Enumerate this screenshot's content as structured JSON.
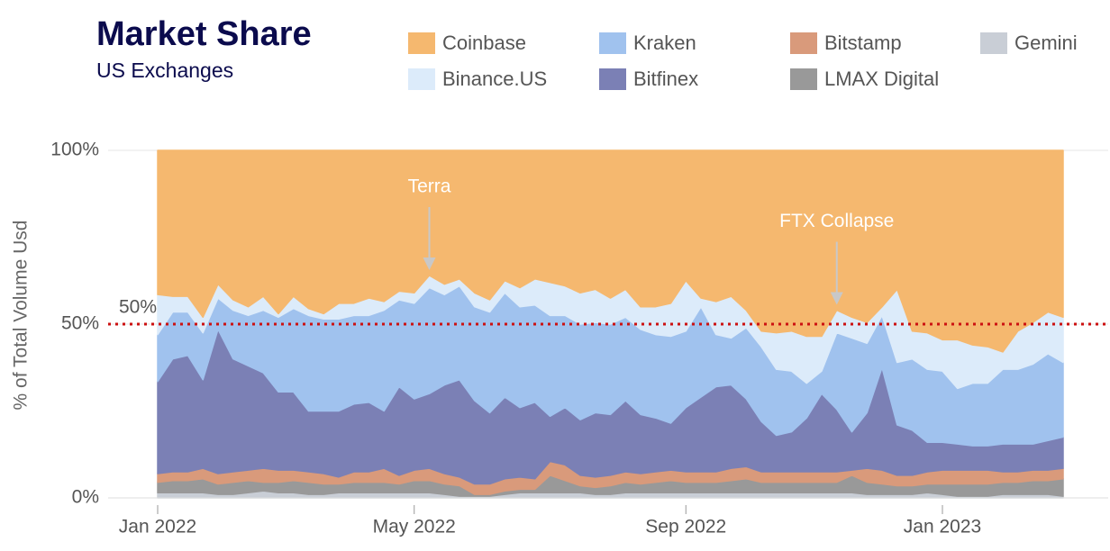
{
  "chart_data": {
    "type": "stacked_area",
    "title": "Market Share",
    "subtitle": "US Exchanges",
    "y_label": "% of Total Volume Usd",
    "categories": [
      "Jan 2022",
      null,
      null,
      null,
      null,
      null,
      null,
      null,
      null,
      null,
      null,
      null,
      null,
      null,
      null,
      null,
      null,
      "May 2022",
      null,
      null,
      null,
      null,
      null,
      null,
      null,
      null,
      null,
      null,
      null,
      null,
      null,
      null,
      null,
      null,
      null,
      "Sep 2022",
      null,
      null,
      null,
      null,
      null,
      null,
      null,
      null,
      null,
      null,
      null,
      null,
      null,
      null,
      null,
      null,
      "Jan 2023",
      null,
      null,
      null,
      null,
      null,
      null,
      null,
      null
    ],
    "ylim": [
      0,
      100
    ],
    "yticks": [
      {
        "value": 0,
        "label": "0%"
      },
      {
        "value": 50,
        "label": "50%"
      },
      {
        "value": 100,
        "label": "100%"
      }
    ],
    "grid": true,
    "reference_line": {
      "value": 50,
      "label": "50%",
      "color": "#cc1111"
    },
    "annotations": [
      {
        "text": "Terra",
        "x": 18
      },
      {
        "text": "FTX Collapse",
        "x": 45
      }
    ],
    "series": [
      {
        "name": "Coinbase",
        "color": "#f5b86f",
        "values": [
          41.5,
          42,
          42,
          48,
          38.5,
          43,
          45,
          42,
          47,
          42,
          45.5,
          47,
          44,
          44,
          42.5,
          43.5,
          40.5,
          41,
          36,
          38.5,
          37,
          41,
          43,
          37.5,
          39.5,
          37,
          38,
          39,
          41,
          40,
          42.5,
          40,
          45,
          45,
          44,
          37.5,
          42.5,
          43.5,
          42,
          46,
          52,
          52.5,
          52,
          53.5,
          53.5,
          46,
          48,
          49.5,
          45,
          40,
          52,
          52.5,
          54.5,
          54.5,
          56,
          56.5,
          58,
          52,
          49.5,
          46.5,
          48
        ]
      },
      {
        "name": "Binance.US",
        "color": "#dcebfa",
        "values": [
          11.5,
          4.5,
          4.5,
          4.5,
          4,
          3,
          2.5,
          4,
          1,
          3.5,
          2,
          1.5,
          4.5,
          3.5,
          5,
          2.5,
          2.5,
          3,
          3.5,
          3,
          2,
          4,
          3.5,
          3.5,
          5.5,
          7.5,
          9.5,
          8.5,
          9,
          9.5,
          7.5,
          8,
          6.5,
          8,
          9.5,
          14.5,
          2.5,
          9.5,
          12,
          5,
          4.5,
          10.5,
          11.5,
          13.5,
          10,
          6.5,
          6,
          6,
          2.5,
          21,
          8,
          10.5,
          9,
          14,
          11,
          10.5,
          5,
          11,
          12,
          12,
          13
        ]
      },
      {
        "name": "Kraken",
        "color": "#a0c2ee",
        "values": [
          13.5,
          13.5,
          12.5,
          13.5,
          9,
          14,
          14.5,
          18,
          21.5,
          24,
          27.5,
          26.5,
          26.5,
          25.5,
          25,
          29,
          25,
          27.5,
          30.5,
          26,
          27,
          27,
          29,
          30,
          29,
          28,
          29,
          26.5,
          27.5,
          26,
          26,
          24,
          24.5,
          24,
          25,
          22,
          26,
          15,
          13.5,
          20.5,
          21.5,
          19,
          17.5,
          10,
          6.5,
          22,
          27,
          20,
          15,
          18,
          20.5,
          21,
          20.5,
          16,
          18,
          18,
          21.5,
          21.5,
          23,
          25,
          21.5
        ]
      },
      {
        "name": "Bitfinex",
        "color": "#7b80b5",
        "values": [
          26.5,
          32.5,
          33.5,
          25.5,
          41.5,
          32.5,
          30,
          27.5,
          22.5,
          22.5,
          17.5,
          18,
          19,
          19.5,
          20,
          16.5,
          25.5,
          20.5,
          21.5,
          25.5,
          28,
          24,
          20.5,
          23.5,
          20,
          22,
          13,
          16.5,
          16,
          18.5,
          17.5,
          20.5,
          17,
          15.5,
          13.5,
          18.5,
          21.5,
          24.5,
          24,
          19.5,
          14.5,
          10.5,
          11.5,
          15.5,
          22.5,
          18,
          11,
          16,
          29.5,
          14.5,
          13,
          8.5,
          8,
          7.5,
          7,
          7,
          8,
          8,
          7.5,
          8.5,
          9
        ]
      },
      {
        "name": "Bitstamp",
        "color": "#d99a7b",
        "values": [
          2.5,
          2.5,
          2.5,
          3,
          3,
          3,
          3,
          4,
          3.5,
          3,
          3,
          3,
          2,
          3,
          3,
          4,
          2.5,
          3,
          3.5,
          3,
          2.5,
          3,
          3,
          3.5,
          3.5,
          3,
          4,
          4.5,
          3,
          3,
          3,
          3,
          3,
          3,
          3,
          3,
          3,
          3,
          3.5,
          3.5,
          3,
          3,
          3,
          3,
          3,
          3,
          1.5,
          4,
          4,
          3,
          3,
          3.5,
          4,
          4,
          4,
          4,
          3,
          3,
          3,
          3,
          3
        ]
      },
      {
        "name": "LMAX Digital",
        "color": "#999999",
        "values": [
          3,
          3.5,
          3.5,
          4,
          3,
          3.5,
          3.5,
          2.5,
          3,
          3.5,
          3.5,
          3,
          2.5,
          3,
          3,
          3,
          2.5,
          3.5,
          3.5,
          3,
          3,
          0.5,
          0.5,
          1,
          1,
          1,
          5,
          3.5,
          2,
          2,
          2.5,
          3,
          2.5,
          3,
          3.5,
          3,
          3,
          3,
          3.5,
          4,
          3,
          3,
          3,
          3,
          3,
          3,
          5,
          3.5,
          3,
          2.5,
          2.5,
          2.5,
          3,
          3.5,
          3.5,
          3.5,
          3.5,
          3.5,
          4,
          4,
          5
        ]
      },
      {
        "name": "Gemini",
        "color": "#c9ced6",
        "values": [
          1.5,
          1.5,
          1.5,
          1.5,
          1,
          1,
          1.5,
          2,
          1.5,
          1.5,
          1,
          1,
          1.5,
          1.5,
          1.5,
          1.5,
          1.5,
          1.5,
          1.5,
          1,
          0.5,
          0.5,
          0.5,
          1,
          1.5,
          1.5,
          1.5,
          1.5,
          1.5,
          1,
          1,
          1.5,
          1.5,
          1.5,
          1.5,
          1.5,
          1.5,
          1.5,
          1.5,
          1.5,
          1.5,
          1.5,
          1.5,
          1.5,
          1.5,
          1.5,
          1.5,
          1,
          1,
          1,
          1,
          1.5,
          1,
          0.5,
          0.5,
          0.5,
          1,
          1,
          1,
          1,
          0.5
        ]
      }
    ]
  }
}
